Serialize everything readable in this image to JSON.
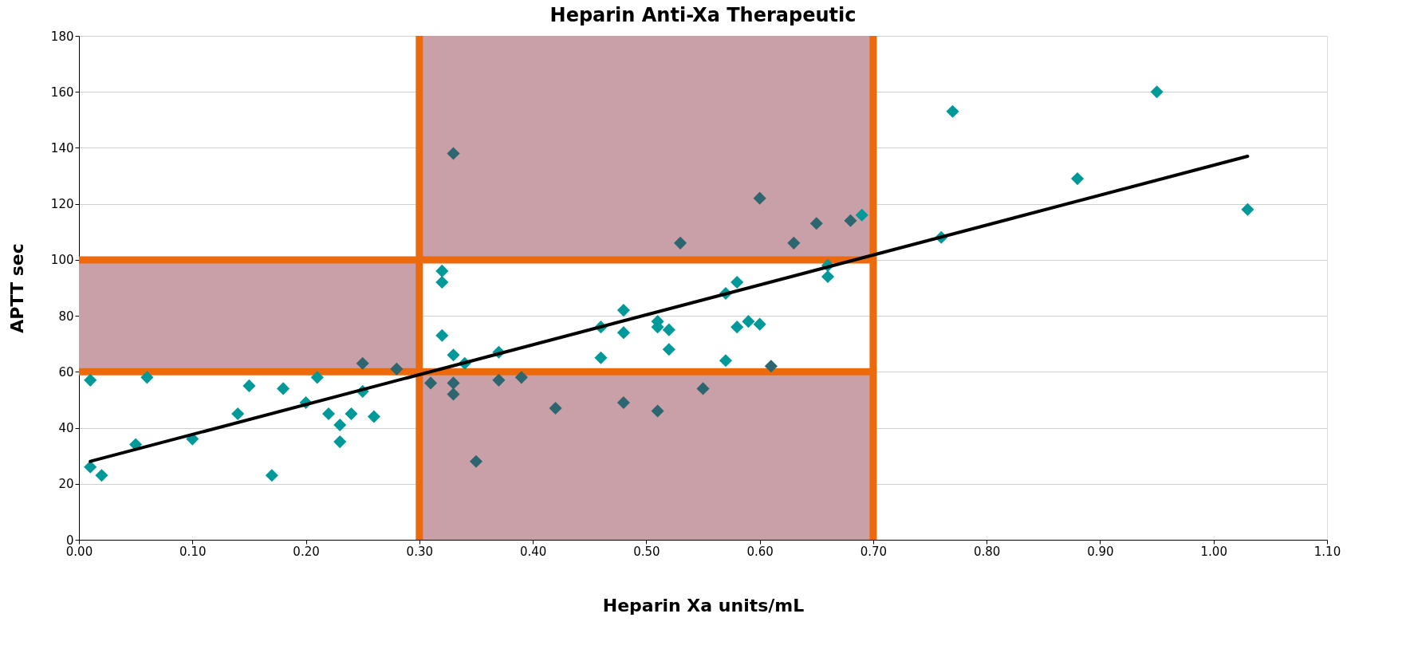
{
  "chart_data": {
    "type": "scatter",
    "title": "Heparin Anti-Xa Therapeutic",
    "xlabel": "Heparin Xa units/mL",
    "ylabel": "APTT sec",
    "xlim": [
      0,
      1.1
    ],
    "ylim": [
      0,
      180
    ],
    "xticks": [
      {
        "value": 0,
        "label": "0.00"
      },
      {
        "value": 0.1,
        "label": "0.10"
      },
      {
        "value": 0.2,
        "label": "0.20"
      },
      {
        "value": 0.3,
        "label": "0.30"
      },
      {
        "value": 0.4,
        "label": "0.40"
      },
      {
        "value": 0.5,
        "label": "0.50"
      },
      {
        "value": 0.6,
        "label": "0.60"
      },
      {
        "value": 0.7,
        "label": "0.70"
      },
      {
        "value": 0.8,
        "label": "0.80"
      },
      {
        "value": 0.9,
        "label": "0.90"
      },
      {
        "value": 1.0,
        "label": "1.00"
      },
      {
        "value": 1.1,
        "label": "1.10"
      }
    ],
    "yticks": [
      0,
      20,
      40,
      60,
      80,
      100,
      120,
      140,
      160,
      180
    ],
    "grid": "y",
    "marker": "diamond",
    "bands": [
      {
        "axis": "y",
        "from": 60,
        "to": 100,
        "color": "#c9a0a8"
      },
      {
        "axis": "x",
        "from": 0.3,
        "to": 0.7,
        "color": "#c9a0a8"
      },
      {
        "axis": "x",
        "from": 0.3,
        "to": 0.7,
        "color": "#c9a0a8"
      }
    ],
    "ref_lines": [
      {
        "axis": "x",
        "value": 0.3,
        "color": "#ec6a0c"
      },
      {
        "axis": "x",
        "value": 0.7,
        "color": "#ec6a0c"
      },
      {
        "axis": "y",
        "value": 60,
        "color": "#ec6a0c"
      },
      {
        "axis": "y",
        "value": 100,
        "color": "#ec6a0c"
      }
    ],
    "series": [
      {
        "x": [
          0.01,
          0.01,
          0.02,
          0.05,
          0.06,
          0.1,
          0.14,
          0.15,
          0.17,
          0.18,
          0.2,
          0.21,
          0.22,
          0.23,
          0.23,
          0.24,
          0.25,
          0.25,
          0.26,
          0.28,
          0.31,
          0.32,
          0.32,
          0.32,
          0.33,
          0.33,
          0.33,
          0.33,
          0.34,
          0.35,
          0.37,
          0.37,
          0.39,
          0.42,
          0.46,
          0.46,
          0.48,
          0.48,
          0.48,
          0.51,
          0.51,
          0.51,
          0.52,
          0.52,
          0.53,
          0.55,
          0.57,
          0.57,
          0.58,
          0.58,
          0.59,
          0.6,
          0.6,
          0.61,
          0.63,
          0.65,
          0.66,
          0.66,
          0.68,
          0.69,
          0.76,
          0.77,
          0.88,
          0.95,
          1.03
        ],
        "values": [
          57,
          26,
          23,
          34,
          58,
          36,
          45,
          55,
          23,
          54,
          49,
          58,
          45,
          41,
          35,
          45,
          63,
          53,
          44,
          61,
          56,
          96,
          92,
          73,
          138,
          66,
          56,
          52,
          63,
          28,
          67,
          57,
          58,
          47,
          76,
          65,
          82,
          74,
          49,
          78,
          76,
          46,
          75,
          68,
          106,
          54,
          88,
          64,
          92,
          76,
          78,
          122,
          77,
          62,
          106,
          113,
          98,
          94,
          114,
          116,
          108,
          153,
          129,
          160,
          118
        ],
        "colors": [
          "#009999",
          "#009999",
          "#009999",
          "#009999",
          "#009999",
          "#009999",
          "#009999",
          "#009999",
          "#009999",
          "#009999",
          "#009999",
          "#009999",
          "#009999",
          "#009999",
          "#009999",
          "#009999",
          "#2e6670",
          "#009999",
          "#009999",
          "#2e6670",
          "#2e6670",
          "#009999",
          "#009999",
          "#009999",
          "#2e6670",
          "#009999",
          "#2e6670",
          "#2e6670",
          "#009999",
          "#2e6670",
          "#009999",
          "#2e6670",
          "#2e6670",
          "#2e6670",
          "#009999",
          "#009999",
          "#009999",
          "#009999",
          "#2e6670",
          "#009999",
          "#009999",
          "#2e6670",
          "#009999",
          "#009999",
          "#2e6670",
          "#2e6670",
          "#009999",
          "#009999",
          "#009999",
          "#009999",
          "#009999",
          "#2e6670",
          "#009999",
          "#2e6670",
          "#2e6670",
          "#2e6670",
          "#009999",
          "#009999",
          "#2e6670",
          "#009999",
          "#009999",
          "#009999",
          "#009999",
          "#009999",
          "#009999"
        ]
      },
      {
        "type": "line",
        "x": [
          0.01,
          1.03
        ],
        "values": [
          28,
          137
        ],
        "color": "#000000",
        "marker": "none"
      }
    ]
  }
}
